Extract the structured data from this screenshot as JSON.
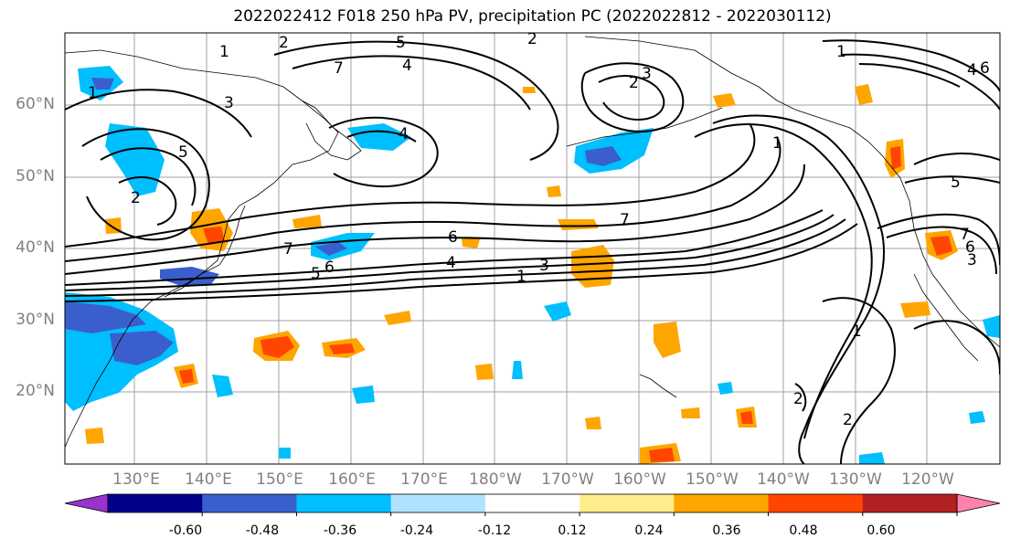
{
  "title": "2022022412 F018 250 hPa PV, precipitation PC (2022022812 - 2022030112)",
  "lat_labels": [
    "60°N",
    "50°N",
    "40°N",
    "30°N",
    "20°N"
  ],
  "lon_labels": [
    "130°E",
    "140°E",
    "150°E",
    "160°E",
    "170°E",
    "180°W",
    "170°W",
    "160°W",
    "150°W",
    "140°W",
    "130°W",
    "120°W"
  ],
  "colorbar": {
    "tick_labels": [
      "-0.60",
      "-0.48",
      "-0.36",
      "-0.24",
      "-0.12",
      "0.12",
      "0.24",
      "0.36",
      "0.48",
      "0.60"
    ],
    "colors": [
      "#9932cc",
      "#00008b",
      "#3a5fcd",
      "#00bfff",
      "#b0e2ff",
      "#ffffff",
      "#ffec8b",
      "#ffa500",
      "#ff4500",
      "#b22222",
      "#ff82ab"
    ]
  },
  "contour_labels": [
    "1",
    "2",
    "3",
    "4",
    "5",
    "6",
    "7",
    "1",
    "2",
    "3",
    "4",
    "5",
    "6",
    "7",
    "1",
    "2",
    "3",
    "4",
    "5",
    "6",
    "7",
    "1",
    "2",
    "1",
    "2",
    "3",
    "4",
    "5",
    "6",
    "7",
    "1",
    "2"
  ],
  "colors": {
    "coast": "#000000",
    "grid": "#a0a0a0",
    "contour": "#000000"
  }
}
